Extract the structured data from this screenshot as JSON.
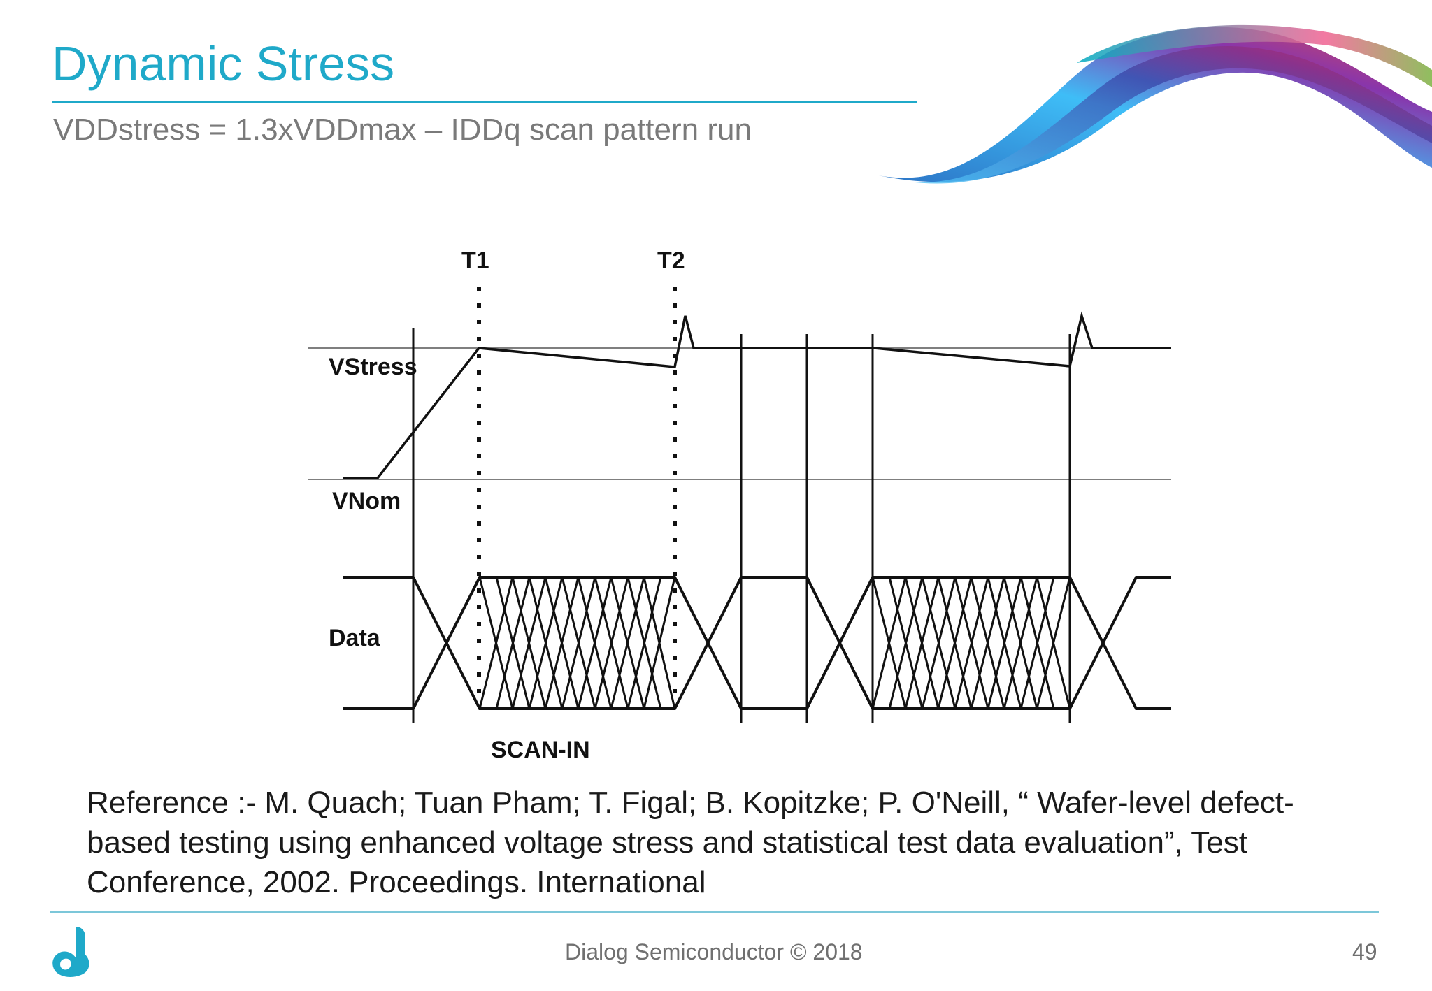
{
  "slide": {
    "title": "Dynamic Stress",
    "subtitle": "VDDstress = 1.3xVDDmax – IDDq scan pattern run",
    "reference": "Reference :- M. Quach; Tuan Pham; T. Figal; B. Kopitzke; P. O'Neill, “ Wafer-level defect-based testing using enhanced voltage stress and statistical test data evaluation”, Test Conference, 2002. Proceedings. International",
    "footer": "Dialog Semiconductor © 2018",
    "page_number": "49"
  },
  "diagram": {
    "markers": [
      "T1",
      "T2"
    ],
    "signal_labels": [
      "VStress",
      "VNom",
      "Data"
    ],
    "phase_label": "SCAN-IN"
  },
  "colors": {
    "title": "#1fa9c9",
    "subtitle": "#7a7a7a",
    "reference": "#1a1a1a",
    "footer": "#707070",
    "logo": "#1fa9c9"
  },
  "icons": {
    "logo": "dialog-semiconductor-logo",
    "decoration": "color-swoosh-graphic"
  }
}
